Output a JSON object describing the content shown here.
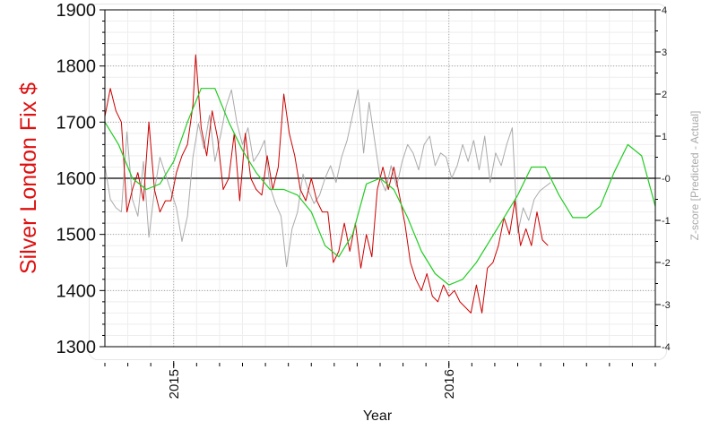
{
  "chart_data": {
    "type": "line",
    "xlabel": "Year",
    "ylabel": "Silver London Fix $",
    "y2label": "Z-score [Predicted - Actual]",
    "xticks": [
      "2015",
      "2016"
    ],
    "xlim": [
      2014.75,
      2016.75
    ],
    "ylim": [
      1300,
      1900
    ],
    "y2lim": [
      -4,
      4
    ],
    "yticks": [
      1300,
      1400,
      1500,
      1600,
      1700,
      1800,
      1900
    ],
    "y2ticks": [
      -4,
      -3,
      -2,
      -1,
      0,
      1,
      2,
      3,
      4
    ],
    "y2tick_labels": [
      "-4",
      "-3",
      "-2",
      "-1",
      "-0",
      "1",
      "2",
      "3",
      "4"
    ],
    "grid": true,
    "colors": {
      "actual": "#cc0000",
      "prediction": "#22cc22",
      "zscore": "#aaaaaa",
      "zero": "#000000"
    },
    "series": [
      {
        "axis": "left",
        "color": "#cc0000",
        "x": [
          2014.75,
          2014.77,
          2014.79,
          2014.81,
          2014.83,
          2014.85,
          2014.87,
          2014.89,
          2014.91,
          2014.93,
          2014.95,
          2014.97,
          2014.99,
          2015.01,
          2015.03,
          2015.05,
          2015.07,
          2015.08,
          2015.1,
          2015.12,
          2015.14,
          2015.16,
          2015.18,
          2015.2,
          2015.22,
          2015.24,
          2015.26,
          2015.28,
          2015.3,
          2015.32,
          2015.34,
          2015.36,
          2015.38,
          2015.4,
          2015.42,
          2015.44,
          2015.46,
          2015.48,
          2015.5,
          2015.52,
          2015.54,
          2015.56,
          2015.58,
          2015.6,
          2015.62,
          2015.64,
          2015.66,
          2015.68,
          2015.7,
          2015.72,
          2015.74,
          2015.76,
          2015.78,
          2015.8,
          2015.82,
          2015.84,
          2015.86,
          2015.88,
          2015.9,
          2015.92,
          2015.94,
          2015.96,
          2015.98,
          2016.0,
          2016.02,
          2016.04,
          2016.06,
          2016.08,
          2016.1,
          2016.12,
          2016.14,
          2016.16,
          2016.18,
          2016.2,
          2016.22,
          2016.24,
          2016.26,
          2016.28,
          2016.3,
          2016.32,
          2016.34,
          2016.36
        ],
        "values": [
          1710,
          1760,
          1720,
          1700,
          1540,
          1580,
          1610,
          1560,
          1700,
          1580,
          1540,
          1560,
          1560,
          1610,
          1640,
          1660,
          1730,
          1820,
          1690,
          1640,
          1720,
          1670,
          1580,
          1600,
          1680,
          1560,
          1680,
          1600,
          1580,
          1570,
          1640,
          1580,
          1620,
          1750,
          1680,
          1640,
          1580,
          1560,
          1600,
          1560,
          1540,
          1540,
          1450,
          1470,
          1520,
          1470,
          1520,
          1440,
          1500,
          1460,
          1580,
          1620,
          1580,
          1620,
          1570,
          1520,
          1450,
          1420,
          1400,
          1430,
          1390,
          1380,
          1410,
          1390,
          1400,
          1380,
          1370,
          1360,
          1410,
          1360,
          1440,
          1450,
          1480,
          1530,
          1500,
          1560,
          1480,
          1510,
          1480,
          1540,
          1490,
          1480
        ]
      },
      {
        "axis": "left",
        "color": "#22cc22",
        "x": [
          2014.75,
          2014.8,
          2014.85,
          2014.9,
          2014.95,
          2015.0,
          2015.05,
          2015.1,
          2015.15,
          2015.2,
          2015.25,
          2015.3,
          2015.35,
          2015.4,
          2015.45,
          2015.5,
          2015.55,
          2015.6,
          2015.65,
          2015.7,
          2015.75,
          2015.8,
          2015.85,
          2015.9,
          2015.95,
          2016.0,
          2016.05,
          2016.1,
          2016.15,
          2016.2,
          2016.25,
          2016.3,
          2016.35,
          2016.4,
          2016.45,
          2016.5,
          2016.55,
          2016.6,
          2016.65,
          2016.7,
          2016.75
        ],
        "values": [
          1700,
          1660,
          1600,
          1580,
          1590,
          1630,
          1700,
          1760,
          1760,
          1700,
          1650,
          1610,
          1580,
          1580,
          1570,
          1540,
          1480,
          1460,
          1500,
          1590,
          1600,
          1580,
          1530,
          1470,
          1430,
          1410,
          1420,
          1450,
          1490,
          1530,
          1570,
          1620,
          1620,
          1570,
          1530,
          1530,
          1550,
          1610,
          1660,
          1640,
          1550
        ]
      },
      {
        "axis": "right",
        "color": "#aaaaaa",
        "x": [
          2014.75,
          2014.77,
          2014.79,
          2014.81,
          2014.83,
          2014.85,
          2014.87,
          2014.89,
          2014.91,
          2014.93,
          2014.95,
          2014.97,
          2014.99,
          2015.01,
          2015.03,
          2015.05,
          2015.07,
          2015.09,
          2015.11,
          2015.13,
          2015.15,
          2015.17,
          2015.19,
          2015.21,
          2015.23,
          2015.25,
          2015.27,
          2015.29,
          2015.31,
          2015.33,
          2015.35,
          2015.37,
          2015.39,
          2015.41,
          2015.43,
          2015.45,
          2015.47,
          2015.49,
          2015.51,
          2015.53,
          2015.55,
          2015.57,
          2015.59,
          2015.61,
          2015.63,
          2015.65,
          2015.67,
          2015.69,
          2015.71,
          2015.73,
          2015.75,
          2015.77,
          2015.79,
          2015.81,
          2015.83,
          2015.85,
          2015.87,
          2015.89,
          2015.91,
          2015.93,
          2015.95,
          2015.97,
          2015.99,
          2016.01,
          2016.03,
          2016.05,
          2016.07,
          2016.09,
          2016.11,
          2016.13,
          2016.15,
          2016.17,
          2016.19,
          2016.21,
          2016.23,
          2016.25,
          2016.27,
          2016.29,
          2016.31,
          2016.33,
          2016.35,
          2016.37
        ],
        "values": [
          0.3,
          -0.5,
          -0.7,
          -0.8,
          1.1,
          -0.5,
          -0.9,
          0.4,
          -1.4,
          -0.3,
          0.5,
          0.1,
          -0.3,
          -0.7,
          -1.5,
          -0.9,
          0.5,
          1.3,
          0.7,
          1.5,
          0.4,
          1.0,
          1.7,
          2.1,
          1.3,
          0.8,
          1.2,
          0.4,
          0.6,
          0.9,
          -0.2,
          -0.6,
          -0.9,
          -2.1,
          -1.2,
          -0.8,
          0.1,
          -0.3,
          -0.6,
          -0.4,
          0.0,
          0.3,
          -0.1,
          0.5,
          0.9,
          1.5,
          2.1,
          0.6,
          1.8,
          0.9,
          0.0,
          -0.3,
          0.3,
          -0.2,
          0.4,
          0.8,
          0.6,
          0.2,
          0.8,
          1.0,
          0.3,
          0.6,
          0.5,
          0.0,
          0.3,
          0.8,
          0.4,
          0.9,
          0.2,
          1.0,
          -0.1,
          0.6,
          0.3,
          0.8,
          1.2,
          -1.3,
          -0.7,
          -1.0,
          -0.5,
          -0.3,
          -0.2,
          -0.1
        ]
      }
    ]
  }
}
